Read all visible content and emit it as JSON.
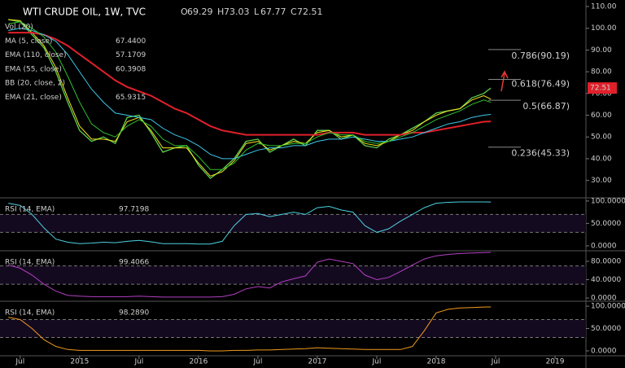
{
  "chart_data": [
    {
      "type": "line",
      "title": "WTI CRUDE OIL, 1W, TVC",
      "ohlc": [
        {
          "label": "O",
          "value": 69.29
        },
        {
          "label": "H",
          "value": 73.03
        },
        {
          "label": "L",
          "value": 67.77
        },
        {
          "label": "C",
          "value": 72.51
        }
      ],
      "indicators": [
        "Vol (20)",
        "BB (20, close, 2)"
      ],
      "x": [
        2014.4,
        2014.5,
        2014.6,
        2014.7,
        2014.8,
        2014.9,
        2015.0,
        2015.1,
        2015.2,
        2015.3,
        2015.4,
        2015.5,
        2015.6,
        2015.7,
        2015.8,
        2015.9,
        2016.0,
        2016.1,
        2016.2,
        2016.3,
        2016.4,
        2016.5,
        2016.6,
        2016.7,
        2016.8,
        2016.9,
        2017.0,
        2017.1,
        2017.2,
        2017.3,
        2017.4,
        2017.5,
        2017.6,
        2017.7,
        2017.8,
        2017.9,
        2018.0,
        2018.1,
        2018.2,
        2018.3,
        2018.4,
        2018.46
      ],
      "xlim": [
        2014.33,
        2019.26
      ],
      "xticks": [
        {
          "value": 2014.5,
          "label": "Jul"
        },
        2015,
        {
          "value": 2015.5,
          "label": "Jul"
        },
        2016,
        {
          "value": 2016.5,
          "label": "Jul"
        },
        2017,
        {
          "value": 2017.5,
          "label": "Jul"
        },
        2018,
        {
          "value": 2018.5,
          "label": "Jul"
        },
        2019
      ],
      "close": [
        104,
        103,
        97,
        91,
        80,
        66,
        53,
        48,
        50,
        47,
        59,
        60,
        52,
        43,
        45,
        46,
        37,
        31,
        35,
        40,
        48,
        49,
        43,
        46,
        49,
        46,
        53,
        53,
        49,
        51,
        46,
        45,
        49,
        51,
        54,
        57,
        61,
        62,
        63,
        68,
        70,
        72.51
      ],
      "close_color": "#5fcf4f",
      "series": [
        {
          "name": "MA (5, close)",
          "color": "#f5e61b",
          "last": 67.44,
          "last_label": "67.4400",
          "values": [
            104,
            103.5,
            98,
            92,
            82,
            68,
            55,
            49,
            49,
            48,
            57,
            59,
            53,
            45,
            45,
            45,
            38,
            32,
            34,
            39,
            47,
            48,
            44,
            46,
            48,
            47,
            52,
            53,
            50,
            51,
            47,
            46,
            48,
            51,
            53,
            57,
            60,
            62,
            63,
            67,
            69,
            67.44
          ]
        },
        {
          "name": "EMA (110, close)",
          "color": "#e0202a",
          "last": 57.1709,
          "values": [
            98,
            98,
            98,
            97,
            95,
            92,
            88,
            84,
            80,
            76,
            73,
            71,
            69,
            66,
            63,
            61,
            58,
            55,
            53,
            52,
            51,
            51,
            51,
            51,
            51,
            51,
            51,
            52,
            52,
            52,
            51,
            51,
            51,
            51,
            52,
            52,
            53,
            54,
            55,
            56,
            57,
            57.1709
          ]
        },
        {
          "name": "EMA (55, close)",
          "color": "#3cc8e8",
          "last": 60.3908,
          "values": [
            99,
            100,
            99,
            97,
            94,
            88,
            80,
            72,
            66,
            61,
            60,
            59,
            58,
            54,
            51,
            49,
            46,
            42,
            40,
            40,
            42,
            44,
            45,
            45,
            46,
            46,
            48,
            49,
            49,
            50,
            49,
            48,
            48,
            49,
            50,
            52,
            54,
            56,
            57,
            59,
            60,
            60.3908
          ]
        },
        {
          "name": "EMA (21, close)",
          "color": "#2fbf2f",
          "last": 65.9315,
          "values": [
            102,
            103,
            100,
            96,
            89,
            78,
            66,
            56,
            52,
            50,
            55,
            58,
            55,
            49,
            46,
            46,
            41,
            35,
            35,
            38,
            44,
            47,
            46,
            46,
            47,
            47,
            50,
            52,
            51,
            51,
            48,
            47,
            48,
            50,
            52,
            55,
            58,
            60,
            62,
            65,
            67,
            65.9315
          ]
        }
      ],
      "fib": [
        {
          "label": "0.786(90.19)",
          "value": 90.19,
          "color": "#dddddd"
        },
        {
          "label": "0.618(76.49)",
          "value": 76.49,
          "color": "#dddddd"
        },
        {
          "label": "0.5(66.87)",
          "value": 66.87,
          "color": "#7cc36a"
        },
        {
          "label": "0.236(45.33)",
          "value": 45.33,
          "color": "#dddddd"
        }
      ],
      "ylim": [
        22,
        113
      ],
      "yticks": [
        {
          "value": 110,
          "label": "110.00"
        },
        {
          "value": 100,
          "label": "100.00"
        },
        {
          "value": 90,
          "label": "90.00"
        },
        {
          "value": 80,
          "label": "80.00"
        },
        {
          "value": 70,
          "label": "70.00"
        },
        {
          "value": 60,
          "label": "60.00"
        },
        {
          "value": 50,
          "label": "50.00"
        },
        {
          "value": 40,
          "label": "40.00"
        },
        {
          "value": 30,
          "label": "30.00"
        }
      ]
    },
    {
      "type": "line",
      "band": [
        30,
        70
      ],
      "ylim": [
        -11,
        107
      ],
      "yticks": [
        {
          "value": 100,
          "label": "100.0000"
        },
        {
          "value": 50,
          "label": "50.0000"
        },
        {
          "value": 0,
          "label": "0.0000"
        }
      ],
      "series": [
        {
          "name": "RSI (14, EMA)",
          "color": "#4dd0e1",
          "last": 97.7198,
          "values": [
            95,
            90,
            70,
            40,
            15,
            8,
            5,
            6,
            8,
            7,
            10,
            12,
            9,
            5,
            5,
            5,
            4,
            4,
            10,
            45,
            70,
            72,
            65,
            70,
            75,
            70,
            85,
            88,
            80,
            75,
            45,
            30,
            38,
            55,
            70,
            85,
            95,
            97,
            98,
            98,
            98,
            97.7198
          ]
        }
      ]
    },
    {
      "type": "line",
      "band": [
        30,
        70
      ],
      "ylim": [
        -7,
        103
      ],
      "yticks": [
        {
          "value": 80,
          "label": "80.0000"
        },
        {
          "value": 40,
          "label": "40.0000"
        },
        {
          "value": 0,
          "label": "0.0000"
        }
      ],
      "series": [
        {
          "name": "RSI (14, EMA)",
          "color": "#b43fc4",
          "last": 99.4066,
          "values": [
            72,
            65,
            50,
            30,
            15,
            6,
            4,
            3,
            3,
            3,
            3,
            4,
            3,
            2,
            2,
            2,
            2,
            2,
            3,
            8,
            20,
            25,
            22,
            35,
            42,
            48,
            78,
            85,
            80,
            75,
            50,
            40,
            45,
            58,
            72,
            85,
            92,
            95,
            97,
            98,
            99,
            99.4066
          ]
        }
      ]
    },
    {
      "type": "line",
      "band": [
        30,
        70
      ],
      "ylim": [
        -11,
        111
      ],
      "yticks": [
        {
          "value": 100,
          "label": "100.0000"
        },
        {
          "value": 50,
          "label": "50.0000"
        },
        {
          "value": 0,
          "label": "0.0000"
        }
      ],
      "series": [
        {
          "name": "RSI (14, EMA)",
          "color": "#f29a1e",
          "last": 98.289,
          "last_label": "98.2890",
          "values": [
            75,
            70,
            50,
            25,
            10,
            3,
            1,
            1,
            1,
            1,
            1,
            1,
            1,
            1,
            1,
            1,
            1,
            0,
            0,
            1,
            1,
            2,
            2,
            3,
            4,
            5,
            7,
            6,
            5,
            4,
            3,
            3,
            3,
            3,
            10,
            45,
            85,
            93,
            96,
            97,
            98,
            98.289
          ]
        }
      ]
    }
  ]
}
